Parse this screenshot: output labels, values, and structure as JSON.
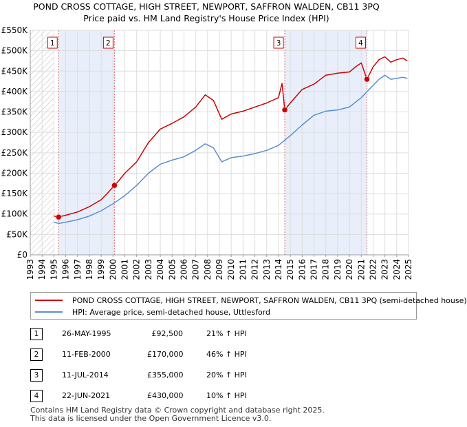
{
  "chart_data": {
    "type": "line",
    "title": "POND CROSS COTTAGE, HIGH STREET, NEWPORT, SAFFRON WALDEN, CB11 3PQ",
    "subtitle": "Price paid vs. HM Land Registry's House Price Index (HPI)",
    "xlim": [
      1993,
      2025
    ],
    "ylim": [
      0,
      550000
    ],
    "x_ticks": [
      "1993",
      "1994",
      "1995",
      "1996",
      "1997",
      "1998",
      "1999",
      "2000",
      "2001",
      "2002",
      "2003",
      "2004",
      "2005",
      "2006",
      "2007",
      "2008",
      "2009",
      "2010",
      "2011",
      "2012",
      "2013",
      "2014",
      "2015",
      "2016",
      "2017",
      "2018",
      "2019",
      "2020",
      "2021",
      "2022",
      "2023",
      "2024",
      "2025"
    ],
    "y_ticks": [
      {
        "value": 0,
        "label": "£0"
      },
      {
        "value": 50000,
        "label": "£50K"
      },
      {
        "value": 100000,
        "label": "£100K"
      },
      {
        "value": 150000,
        "label": "£150K"
      },
      {
        "value": 200000,
        "label": "£200K"
      },
      {
        "value": 250000,
        "label": "£250K"
      },
      {
        "value": 300000,
        "label": "£300K"
      },
      {
        "value": 350000,
        "label": "£350K"
      },
      {
        "value": 400000,
        "label": "£400K"
      },
      {
        "value": 450000,
        "label": "£450K"
      },
      {
        "value": 500000,
        "label": "£500K"
      },
      {
        "value": 550000,
        "label": "£550K"
      }
    ],
    "grid": true,
    "hatched_before": 1995.0,
    "shaded_periods": [
      [
        1995.4,
        2000.12
      ],
      [
        2014.53,
        2021.48
      ]
    ],
    "series": [
      {
        "name": "POND CROSS COTTAGE, HIGH STREET, NEWPORT, SAFFRON WALDEN, CB11 3PQ (semi-detached house)",
        "color": "#cc0000",
        "x": [
          1995.0,
          1995.4,
          1996.0,
          1997.0,
          1998.0,
          1999.0,
          1999.5,
          2000.12,
          2000.5,
          2001.0,
          2002.0,
          2003.0,
          2004.0,
          2005.0,
          2006.0,
          2007.0,
          2007.8,
          2008.5,
          2009.2,
          2010.0,
          2011.0,
          2012.0,
          2013.0,
          2014.0,
          2014.3,
          2014.53,
          2015.0,
          2016.0,
          2017.0,
          2018.0,
          2019.0,
          2020.0,
          2020.5,
          2021.0,
          2021.48,
          2022.0,
          2022.5,
          2023.0,
          2023.5,
          2024.0,
          2024.5,
          2024.9
        ],
        "values": [
          95000,
          92500,
          97000,
          105000,
          118000,
          135000,
          150000,
          170000,
          182000,
          200000,
          228000,
          275000,
          308000,
          322000,
          338000,
          362000,
          392000,
          378000,
          332000,
          345000,
          352000,
          362000,
          372000,
          385000,
          420000,
          355000,
          372000,
          405000,
          418000,
          440000,
          445000,
          448000,
          460000,
          470000,
          430000,
          460000,
          478000,
          485000,
          472000,
          478000,
          482000,
          475000
        ]
      },
      {
        "name": "HPI: Average price, semi-detached house, Uttlesford",
        "color": "#5b8fd0",
        "x": [
          1995.0,
          1995.4,
          1996.0,
          1997.0,
          1998.0,
          1999.0,
          2000.0,
          2001.0,
          2002.0,
          2003.0,
          2004.0,
          2005.0,
          2006.0,
          2007.0,
          2007.8,
          2008.5,
          2009.2,
          2010.0,
          2011.0,
          2012.0,
          2013.0,
          2014.0,
          2015.0,
          2016.0,
          2017.0,
          2018.0,
          2019.0,
          2020.0,
          2021.0,
          2022.0,
          2022.5,
          2023.0,
          2023.5,
          2024.0,
          2024.5,
          2024.9
        ],
        "values": [
          80000,
          77000,
          80000,
          86000,
          95000,
          108000,
          125000,
          145000,
          170000,
          200000,
          222000,
          232000,
          240000,
          256000,
          272000,
          262000,
          228000,
          238000,
          242000,
          248000,
          256000,
          268000,
          292000,
          318000,
          342000,
          352000,
          355000,
          362000,
          385000,
          415000,
          430000,
          440000,
          430000,
          432000,
          435000,
          432000
        ]
      }
    ],
    "sale_markers": [
      {
        "label": "1",
        "x": 1995.4,
        "value": 92500
      },
      {
        "label": "2",
        "x": 2000.12,
        "value": 170000
      },
      {
        "label": "3",
        "x": 2014.53,
        "value": 355000
      },
      {
        "label": "4",
        "x": 2021.48,
        "value": 430000
      }
    ]
  },
  "legend": {
    "property_label": "POND CROSS COTTAGE, HIGH STREET, NEWPORT, SAFFRON WALDEN, CB11 3PQ (semi-detached house)",
    "hpi_label": "HPI: Average price, semi-detached house, Uttlesford",
    "property_color": "#cc0000",
    "hpi_color": "#5b8fd0"
  },
  "sales": [
    {
      "label": "1",
      "date": "26-MAY-1995",
      "price": "£92,500",
      "hpi_diff": "21% ↑ HPI"
    },
    {
      "label": "2",
      "date": "11-FEB-2000",
      "price": "£170,000",
      "hpi_diff": "46% ↑ HPI"
    },
    {
      "label": "3",
      "date": "11-JUL-2014",
      "price": "£355,000",
      "hpi_diff": "20% ↑ HPI"
    },
    {
      "label": "4",
      "date": "22-JUN-2021",
      "price": "£430,000",
      "hpi_diff": "10% ↑ HPI"
    }
  ],
  "footer": {
    "line1": "Contains HM Land Registry data © Crown copyright and database right 2025.",
    "line2": "This data is licensed under the Open Government Licence v3.0."
  }
}
